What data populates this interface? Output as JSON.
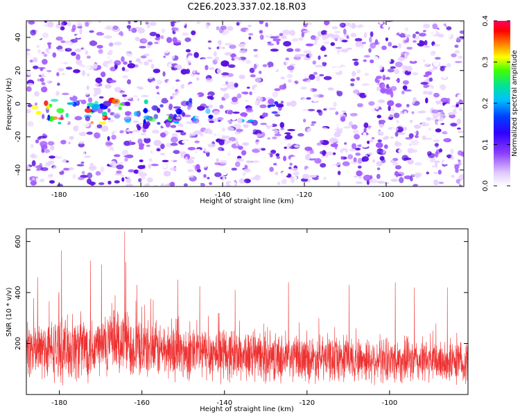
{
  "figure": {
    "title": "C2E6.2023.337.02.18.R03"
  },
  "colors": {
    "snr_line": "#ee3030",
    "axis": "#000000",
    "background": "#ffffff",
    "colormap": [
      "#ffffff",
      "#e8d2ff",
      "#a55cff",
      "#5a10e0",
      "#0000ff",
      "#00b0ff",
      "#00e0a0",
      "#20ff20",
      "#ffff00",
      "#ff8000",
      "#ff0000",
      "#ff0060"
    ]
  },
  "chart_data": [
    {
      "type": "heatmap",
      "xlabel": "Height of straight line (km)",
      "ylabel": "Frequency (Hz)",
      "xlim": [
        -188,
        -81
      ],
      "ylim": [
        -50,
        50
      ],
      "xticks": [
        -180,
        -160,
        -140,
        -120,
        -100
      ],
      "yticks": [
        -40,
        -20,
        0,
        20,
        40
      ],
      "grid": false,
      "colorbar": {
        "label": "Normalized spectral amplitude",
        "range": [
          0.0,
          0.4
        ],
        "ticks": [
          "0.0",
          "0.1",
          "0.2",
          "0.3",
          "0.4"
        ],
        "position": "right"
      },
      "features": [
        {
          "description_band": "enhanced horizontal band",
          "frequency_center": -5,
          "frequency_halfwidth": 7,
          "x_range": [
            -188,
            -125
          ],
          "peak_x": -175,
          "peak_amplitude": 0.35
        }
      ]
    },
    {
      "type": "line",
      "xlabel": "Height of straight line (km)",
      "ylabel": "SNR (10 * v/v)",
      "xlim": [
        -188,
        -81
      ],
      "ylim": [
        0,
        650
      ],
      "xticks": [
        -180,
        -160,
        -140,
        -120,
        -100
      ],
      "yticks": [
        200,
        400,
        600
      ],
      "grid": false,
      "series": [
        {
          "envelope_x": [
            -188,
            -180,
            -175,
            -170,
            -165,
            -160,
            -150,
            -140,
            -130,
            -120,
            -110,
            -100,
            -90,
            -81
          ],
          "envelope_mean": [
            175,
            175,
            185,
            190,
            205,
            180,
            165,
            160,
            145,
            140,
            140,
            135,
            130,
            125
          ],
          "envelope_amplitude": [
            180,
            190,
            210,
            200,
            220,
            175,
            170,
            165,
            150,
            140,
            140,
            140,
            135,
            130
          ],
          "peaks": [
            {
              "x": -164.2,
              "y": 640
            },
            {
              "x": -179.5,
              "y": 565
            },
            {
              "x": -172.5,
              "y": 525
            },
            {
              "x": -169.8,
              "y": 510
            },
            {
              "x": -163.9,
              "y": 520
            },
            {
              "x": -185.3,
              "y": 460
            },
            {
              "x": -161.2,
              "y": 430
            },
            {
              "x": -151.3,
              "y": 450
            },
            {
              "x": -146.0,
              "y": 425
            },
            {
              "x": -137.4,
              "y": 410
            },
            {
              "x": -124.5,
              "y": 440
            },
            {
              "x": -109.8,
              "y": 430
            },
            {
              "x": -98.6,
              "y": 440
            },
            {
              "x": -94.0,
              "y": 420
            },
            {
              "x": -86.0,
              "y": 420
            }
          ]
        }
      ]
    }
  ]
}
